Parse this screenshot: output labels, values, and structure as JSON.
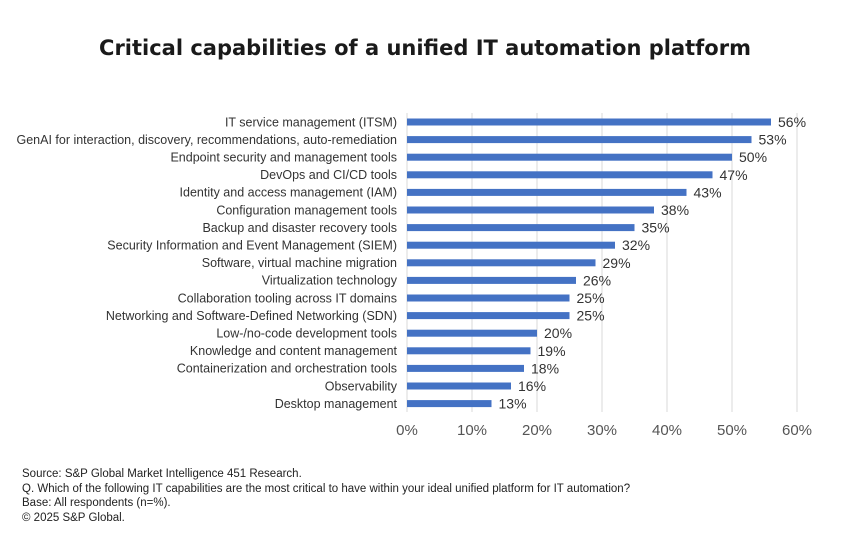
{
  "chart_data": {
    "type": "bar",
    "orientation": "horizontal",
    "title": "Critical capabilities of a unified IT automation platform",
    "categories": [
      "IT service management (ITSM)",
      "GenAI for interaction, discovery, recommendations, auto-remediation",
      "Endpoint security and management tools",
      "DevOps and CI/CD tools",
      "Identity and access management (IAM)",
      "Configuration management tools",
      "Backup and disaster recovery tools",
      "Security Information and Event Management (SIEM)",
      "Software, virtual machine migration",
      "Virtualization technology",
      "Collaboration tooling across IT domains",
      "Networking and Software-Defined Networking (SDN)",
      "Low-/no-code development tools",
      "Knowledge and content management",
      "Containerization and orchestration tools",
      "Observability",
      "Desktop management"
    ],
    "values": [
      56,
      53,
      50,
      47,
      43,
      38,
      35,
      32,
      29,
      26,
      25,
      25,
      20,
      19,
      18,
      16,
      13
    ],
    "data_labels": [
      "56%",
      "53%",
      "50%",
      "47%",
      "43%",
      "38%",
      "35%",
      "32%",
      "29%",
      "26%",
      "25%",
      "25%",
      "20%",
      "19%",
      "18%",
      "16%",
      "13%"
    ],
    "xlim": [
      0,
      60
    ],
    "xticks": [
      0,
      10,
      20,
      30,
      40,
      50,
      60
    ],
    "xtick_labels": [
      "0%",
      "10%",
      "20%",
      "30%",
      "40%",
      "50%",
      "60%"
    ],
    "xlabel": "",
    "ylabel": "",
    "grid": "vertical",
    "legend": "none",
    "bar_color": "#4472C4",
    "grid_color": "#D9D9D9"
  },
  "footnotes": {
    "source": "Source: S&P Global Market Intelligence 451 Research.",
    "question": "Q. Which of the following IT capabilities are the most critical to have within your ideal unified platform for IT automation?",
    "base": "Base: All respondents (n=%).",
    "copyright": "© 2025 S&P Global."
  }
}
